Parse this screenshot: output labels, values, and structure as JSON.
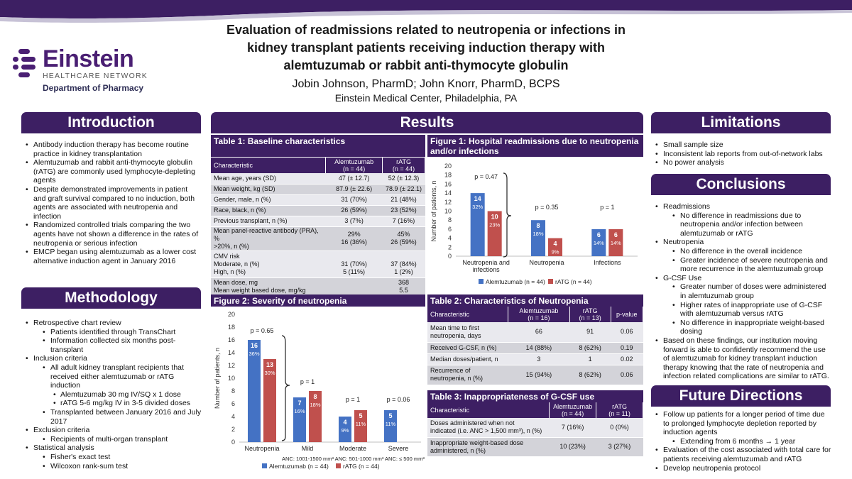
{
  "header": {
    "title_lines": [
      "Evaluation of readmissions related to neutropenia or infections in",
      "kidney transplant patients receiving induction therapy with",
      "alemtuzumab or rabbit anti-thymocyte globulin"
    ],
    "authors": "Jobin Johnson, PharmD; John Knorr, PharmD, BCPS",
    "affiliation": "Einstein Medical Center, Philadelphia, PA"
  },
  "logo": {
    "name": "Einstein",
    "network": "HEALTHCARE NETWORK",
    "department": "Department of Pharmacy"
  },
  "colors": {
    "purple": "#3d1f63",
    "alemtuzumab": "#4472c4",
    "ratg": "#c0504d"
  },
  "introduction": {
    "heading": "Introduction",
    "bullets": [
      "Antibody induction therapy has become routine practice in kidney transplantation",
      "Alemtuzumab and rabbit anti-thymocyte globulin (rATG) are commonly used lymphocyte-depleting agents",
      "Despite demonstrated improvements in patient and graft survival compared to no induction, both agents are associated with neutropenia and infection",
      "Randomized controlled trials comparing the two agents have not shown a difference in the rates of neutropenia or serious infection",
      "EMCP began using alemtuzumab as a lower cost alternative induction agent in January 2016"
    ]
  },
  "methodology": {
    "heading": "Methodology",
    "items": [
      "Retrospective chart review",
      "Patients identified through TransChart",
      "Information collected six months post-transplant",
      "Inclusion criteria",
      "All adult kidney transplant recipients that received either alemtuzumab or rATG induction",
      "Alemtuzumab 30 mg IV/SQ x 1 dose",
      "rATG 5-6 mg/kg IV in 3-5 divided doses",
      "Transplanted between January 2016 and July 2017",
      "Exclusion criteria",
      "Recipients of multi-organ transplant",
      "Statistical analysis",
      "Fisher's exact test",
      "Wilcoxon rank-sum test"
    ]
  },
  "results": {
    "heading": "Results",
    "table1": {
      "title": "Table 1: Baseline characteristics",
      "headers": [
        "Characteristic",
        "Alemtuzumab\n(n = 44)",
        "rATG\n(n = 44)"
      ],
      "rows": [
        [
          "Mean age, years (SD)",
          "47 (± 12.7)",
          "52 (± 12.3)"
        ],
        [
          "Mean weight, kg (SD)",
          "87.9 (± 22.6)",
          "78.9 (± 22.1)"
        ],
        [
          "Gender, male, n (%)",
          "31 (70%)",
          "21 (48%)"
        ],
        [
          "Race, black, n (%)",
          "26 (59%)",
          "23 (52%)"
        ],
        [
          "Previous transplant, n (%)",
          "3 (7%)",
          "7 (16%)"
        ],
        [
          "Mean panel-reactive antibody (PRA), %\n>20%, n (%)",
          "29%\n16 (36%)",
          "45%\n26 (59%)"
        ],
        [
          "CMV risk\n  Moderate, n (%)\n  High, n (%)",
          "\n31 (70%)\n5 (11%)",
          "\n37 (84%)\n1 (2%)"
        ],
        [
          "Mean dose, mg\n  Mean weight based dose, mg/kg",
          "",
          "368\n5.5"
        ]
      ]
    },
    "table2": {
      "title": "Table 2: Characteristics of Neutropenia",
      "headers": [
        "Characteristic",
        "Alemtuzumab\n(n = 16)",
        "rATG\n(n = 13)",
        "p-value"
      ],
      "rows": [
        [
          "Mean time to first\nneutropenia, days",
          "66",
          "91",
          "0.06"
        ],
        [
          "Received G-CSF, n (%)",
          "14 (88%)",
          "8 (62%)",
          "0.19"
        ],
        [
          "Median doses/patient, n",
          "3",
          "1",
          "0.02"
        ],
        [
          "Recurrence of\nneutropenia, n (%)",
          "15 (94%)",
          "8 (62%)",
          "0.06"
        ]
      ]
    },
    "table3": {
      "title": "Table 3: Inappropriateness of G-CSF use",
      "headers": [
        "Characteristic",
        "Alemtuzumab\n(n = 44)",
        "rATG\n(n = 11)"
      ],
      "rows": [
        [
          "Doses administered when not\nindicated (i.e. ANC > 1,500 mm³), n (%)",
          "7 (16%)",
          "0 (0%)"
        ],
        [
          "Inappropriate weight-based dose\nadministered, n (%)",
          "10 (23%)",
          "3 (27%)"
        ]
      ]
    }
  },
  "chart_data": [
    {
      "type": "bar",
      "title": "Figure 1: Hospital readmissions due to neutropenia and/or infections",
      "categories": [
        "Neutropenia and infections",
        "Neutropenia",
        "Infections"
      ],
      "series": [
        {
          "name": "Alemtuzumab (n = 44)",
          "values": [
            14,
            8,
            6
          ],
          "labels": [
            "32%",
            "18%",
            "14%"
          ]
        },
        {
          "name": "rATG (n = 44)",
          "values": [
            10,
            4,
            6
          ],
          "labels": [
            "23%",
            "9%",
            "14%"
          ]
        }
      ],
      "pvalues": [
        "p = 0.47",
        "p = 0.35",
        "p = 1"
      ],
      "ylabel": "Number of patients, n",
      "ylim": [
        0,
        20
      ],
      "yticks": [
        0,
        2,
        4,
        6,
        8,
        10,
        12,
        14,
        16,
        18,
        20
      ],
      "legend": "bottom"
    },
    {
      "type": "bar",
      "title": "Figure 2: Severity of neutropenia",
      "categories": [
        "Neutropenia",
        "Mild",
        "Moderate",
        "Severe"
      ],
      "series": [
        {
          "name": "Alemtuzumab (n = 44)",
          "values": [
            16,
            7,
            4,
            5
          ],
          "labels": [
            "36%",
            "16%",
            "9%",
            "11%"
          ]
        },
        {
          "name": "rATG (n = 44)",
          "values": [
            13,
            8,
            5,
            null
          ],
          "labels": [
            "30%",
            "18%",
            "11%",
            ""
          ]
        }
      ],
      "pvalues": [
        "p = 0.65",
        "p = 1",
        "p = 1",
        "p = 0.06"
      ],
      "ylabel": "Number of patients, n",
      "ylim": [
        0,
        20
      ],
      "yticks": [
        0,
        2,
        4,
        6,
        8,
        10,
        12,
        14,
        16,
        18,
        20
      ],
      "footnote": "ANC: 1001-1500 mm³ ANC: 501-1000 mm³ ANC: ≤ 500 mm³",
      "legend": "bottom"
    }
  ],
  "limitations": {
    "heading": "Limitations",
    "bullets": [
      "Small sample size",
      "Inconsistent lab reports from out-of-network labs",
      "No power analysis"
    ]
  },
  "conclusions": {
    "heading": "Conclusions",
    "items": [
      "Readmissions",
      "No difference in readmissions due to neutropenia and/or infection between alemtuzumab or rATG",
      "Neutropenia",
      "No difference in the overall incidence",
      "Greater incidence of severe neutropenia and more recurrence in the alemtuzumab group",
      "G-CSF Use",
      "Greater number of doses were administered in alemtuzumab group",
      "Higher rates of inappropriate use of G-CSF with alemtuzumab versus rATG",
      "No difference in inappropriate weight-based dosing",
      "Based on these findings, our institution moving forward is able to confidently recommend the use of alemtuzumab for kidney transplant induction therapy knowing that the rate of neutropenia and infection related complications are similar to rATG."
    ]
  },
  "future": {
    "heading": "Future Directions",
    "items": [
      "Follow up patients for a longer period of time due to prolonged lymphocyte depletion reported by induction agents",
      "Extending from 6 months → 1 year",
      "Evaluation of the cost associated with total care for patients receiving alemtuzumab and rATG",
      "Develop neutropenia protocol"
    ]
  }
}
